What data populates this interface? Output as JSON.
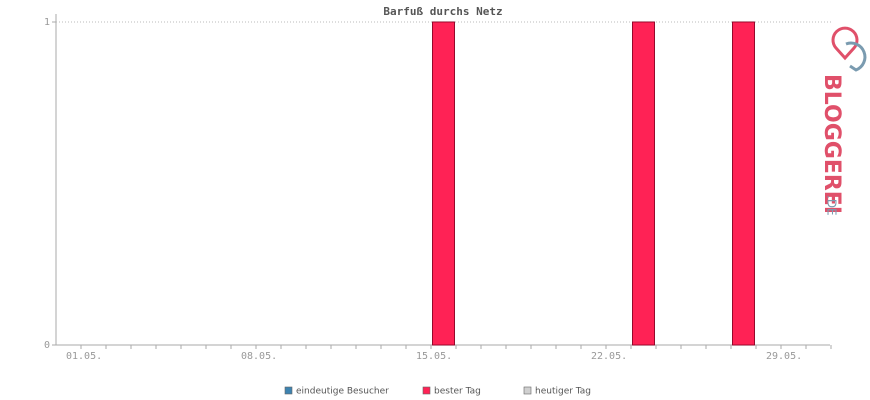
{
  "chart_data": {
    "type": "bar",
    "title": "Barfuß durchs Netz",
    "categories": [
      "01.05.",
      null,
      null,
      null,
      null,
      null,
      null,
      "08.05.",
      null,
      null,
      null,
      null,
      null,
      null,
      "15.05.",
      null,
      null,
      null,
      null,
      null,
      null,
      "22.05.",
      null,
      null,
      null,
      null,
      null,
      null,
      "29.05.",
      null,
      null
    ],
    "series": [
      {
        "name": "eindeutige Besucher",
        "color": "#3d83b0",
        "values": [
          0,
          0,
          0,
          0,
          0,
          0,
          0,
          0,
          0,
          0,
          0,
          0,
          0,
          0,
          0,
          1,
          0,
          0,
          0,
          0,
          0,
          0,
          0,
          1,
          0,
          0,
          0,
          1,
          0,
          0,
          0
        ]
      },
      {
        "name": "bester Tag",
        "color": "#ff2255",
        "values": [
          null,
          null,
          null,
          null,
          null,
          null,
          null,
          null,
          null,
          null,
          null,
          null,
          null,
          null,
          null,
          1,
          null,
          null,
          null,
          null,
          null,
          null,
          null,
          1,
          null,
          null,
          null,
          1,
          null,
          null,
          null
        ]
      },
      {
        "name": "heutiger Tag",
        "color": "#d0d0d0",
        "values": [
          null,
          null,
          null,
          null,
          null,
          null,
          null,
          null,
          null,
          null,
          null,
          null,
          null,
          null,
          null,
          null,
          null,
          null,
          null,
          null,
          null,
          null,
          null,
          null,
          null,
          null,
          null,
          null,
          null,
          null,
          null
        ]
      }
    ],
    "ylim": [
      0,
      1
    ],
    "yticks": [
      0,
      1
    ],
    "grid": true
  },
  "logo": {
    "text": "BLOGGEREI",
    "suffix": ".DE"
  }
}
